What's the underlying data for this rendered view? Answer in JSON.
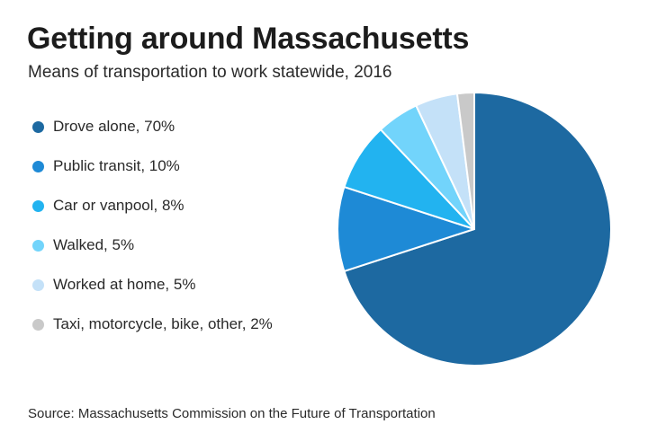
{
  "title": "Getting around Massachusetts",
  "subtitle": "Means of transportation to work statewide, 2016",
  "source": "Source: Massachusetts Commission on the Future of Transportation",
  "chart_data": {
    "type": "pie",
    "title": "Getting around Massachusetts",
    "subtitle": "Means of transportation to work statewide, 2016",
    "legend_position": "left",
    "start_angle_deg": 0,
    "direction": "clockwise",
    "slices": [
      {
        "label": "Drove alone, 70%",
        "value": 70,
        "color": "#1d69a1"
      },
      {
        "label": "Public transit, 10%",
        "value": 10,
        "color": "#1e8ad6"
      },
      {
        "label": "Car or vanpool, 8%",
        "value": 8,
        "color": "#22b3f0"
      },
      {
        "label": "Walked, 5%",
        "value": 5,
        "color": "#72d4fb"
      },
      {
        "label": "Worked at home, 5%",
        "value": 5,
        "color": "#c4e1f8"
      },
      {
        "label": "Taxi, motorcycle, bike, other, 2%",
        "value": 2,
        "color": "#c9c9c9"
      }
    ]
  }
}
